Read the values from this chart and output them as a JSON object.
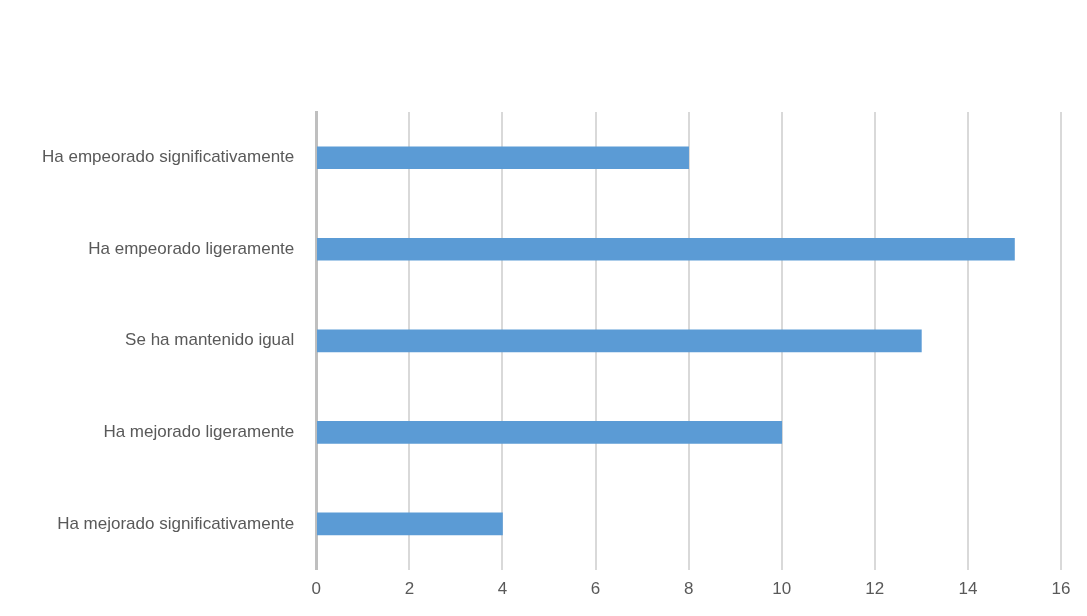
{
  "chart_data": {
    "type": "bar",
    "orientation": "horizontal",
    "categories": [
      "Ha empeorado significativamente",
      "Ha empeorado ligeramente",
      "Se ha mantenido igual",
      "Ha mejorado ligeramente",
      "Ha mejorado significativamente"
    ],
    "values": [
      8,
      15,
      13,
      10,
      4
    ],
    "color": "#5b9bd5",
    "xlim": [
      0,
      16
    ],
    "xticks": [
      0,
      2,
      4,
      6,
      8,
      10,
      12,
      14,
      16
    ],
    "grid": "x",
    "legend": false
  }
}
